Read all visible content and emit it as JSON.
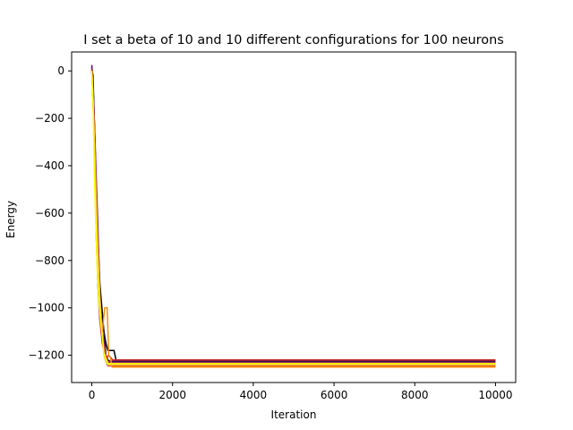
{
  "chart_data": {
    "type": "line",
    "title": "I set a beta of 10 and 10 different configurations for 100 neurons",
    "xlabel": "Iteration",
    "ylabel": "Energy",
    "xlim": [
      -500,
      10500
    ],
    "ylim": [
      -1315,
      80
    ],
    "xticks": [
      0,
      2000,
      4000,
      6000,
      8000,
      10000
    ],
    "yticks": [
      0,
      -200,
      -400,
      -600,
      -800,
      -1000,
      -1200
    ],
    "grid": false,
    "legend": "none",
    "colormap": "plasma/inferno-like",
    "series": [
      {
        "color": "#000004",
        "x": [
          0,
          30,
          60,
          100,
          150,
          200,
          250,
          300,
          350,
          400,
          500,
          550,
          600,
          10000
        ],
        "y": [
          10,
          -20,
          -200,
          -450,
          -700,
          -900,
          -1000,
          -1100,
          -1150,
          -1180,
          -1180,
          -1180,
          -1220,
          -1220
        ]
      },
      {
        "color": "#240c4e",
        "x": [
          0,
          40,
          80,
          120,
          160,
          200,
          250,
          300,
          350,
          400,
          450,
          10000
        ],
        "y": [
          20,
          -100,
          -300,
          -600,
          -850,
          -1000,
          -1050,
          -1100,
          -1200,
          -1220,
          -1225,
          -1225
        ]
      },
      {
        "color": "#57106e",
        "x": [
          0,
          30,
          70,
          110,
          150,
          200,
          240,
          280,
          330,
          380,
          10000
        ],
        "y": [
          25,
          -50,
          -350,
          -700,
          -900,
          -1050,
          -1100,
          -1150,
          -1200,
          -1240,
          -1240
        ]
      },
      {
        "color": "#8a226a",
        "x": [
          0,
          50,
          100,
          150,
          200,
          250,
          300,
          350,
          400,
          10000
        ],
        "y": [
          15,
          -150,
          -400,
          -650,
          -950,
          -1100,
          -1150,
          -1200,
          -1230,
          -1230
        ]
      },
      {
        "color": "#bc3754",
        "x": [
          0,
          40,
          90,
          140,
          190,
          240,
          290,
          340,
          390,
          10000
        ],
        "y": [
          5,
          -180,
          -450,
          -750,
          -950,
          -1080,
          -1150,
          -1200,
          -1235,
          -1235
        ]
      },
      {
        "color": "#e45a31",
        "x": [
          0,
          50,
          100,
          150,
          200,
          250,
          300,
          350,
          400,
          450,
          10000
        ],
        "y": [
          0,
          -200,
          -500,
          -800,
          -1000,
          -1100,
          -1180,
          -1200,
          -1245,
          -1245,
          -1245
        ]
      },
      {
        "color": "#d62728",
        "x": [
          0,
          40,
          80,
          120,
          160,
          200,
          260,
          320,
          370,
          420,
          470,
          520,
          10000
        ],
        "y": [
          5,
          -150,
          -400,
          -700,
          -900,
          -1050,
          -1150,
          -1200,
          -1210,
          -1200,
          -1210,
          -1220,
          -1220
        ]
      },
      {
        "color": "#f98e09",
        "x": [
          0,
          40,
          80,
          120,
          160,
          200,
          260,
          320,
          350,
          380,
          420,
          460,
          500,
          10000
        ],
        "y": [
          0,
          -180,
          -420,
          -700,
          -900,
          -1000,
          -1100,
          -1000,
          -1000,
          -1000,
          -1200,
          -1210,
          -1250,
          -1250
        ]
      },
      {
        "color": "#f9c932",
        "x": [
          0,
          50,
          100,
          150,
          200,
          250,
          300,
          350,
          400,
          10000
        ],
        "y": [
          0,
          -220,
          -500,
          -760,
          -950,
          -1100,
          -1200,
          -1230,
          -1240,
          -1240
        ]
      },
      {
        "color": "#fcff00",
        "x": [
          0,
          30,
          60,
          100,
          140,
          180,
          220,
          260,
          300,
          350,
          400,
          10000
        ],
        "y": [
          0,
          -120,
          -420,
          -650,
          -860,
          -980,
          -1060,
          -1120,
          -1190,
          -1215,
          -1235,
          -1235
        ]
      }
    ]
  }
}
